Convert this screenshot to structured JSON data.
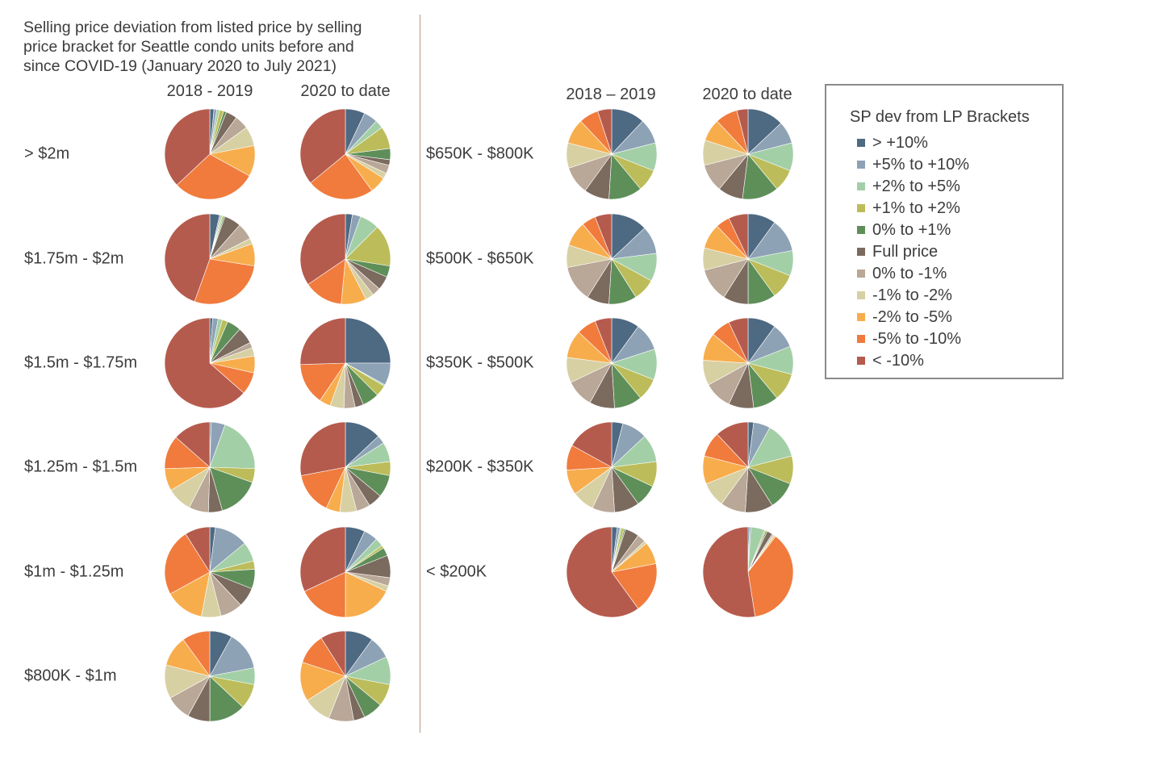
{
  "title_lines": [
    "Selling price deviation from listed price by selling",
    "price bracket for Seattle condo units before and",
    "since COVID-19 (January 2020 to July 2021)"
  ],
  "left_headers": [
    "2018 - 2019",
    "2020 to date"
  ],
  "right_headers": [
    "2018 – 2019",
    "2020 to date"
  ],
  "legend": {
    "title": "SP dev from LP Brackets",
    "items": [
      {
        "label": "> +10%",
        "color": "#4e6982"
      },
      {
        "label": "+5% to +10%",
        "color": "#8ea2b6"
      },
      {
        "label": "+2% to +5%",
        "color": "#a3cfa7"
      },
      {
        "label": "+1% to +2%",
        "color": "#bcbd5a"
      },
      {
        "label": "0% to +1%",
        "color": "#5e8f59"
      },
      {
        "label": "Full price",
        "color": "#7b6a5e"
      },
      {
        "label": "0% to -1%",
        "color": "#b9a797"
      },
      {
        "label": "-1% to -2%",
        "color": "#d7d0a3"
      },
      {
        "label": "-2% to -5%",
        "color": "#f8ad4d"
      },
      {
        "label": "-5% to -10%",
        "color": "#f07b3d"
      },
      {
        "label": "< -10%",
        "color": "#b55b4d"
      }
    ]
  },
  "chart_data": {
    "type": "pie",
    "unit": "share of sales (%)",
    "category_order": [
      "> +10%",
      "+5% to +10%",
      "+2% to +5%",
      "+1% to +2%",
      "0% to +1%",
      "Full price",
      "0% to -1%",
      "-1% to -2%",
      "-2% to -5%",
      "-5% to -10%",
      "< -10%"
    ],
    "brackets": [
      {
        "label": "> $2m",
        "2018-2019": [
          1.5,
          1.0,
          1.0,
          1.5,
          1.0,
          4.0,
          5.0,
          7.0,
          11.0,
          30.0,
          37.0
        ],
        "2020 to date": [
          7.0,
          5.0,
          3.0,
          8.0,
          4.0,
          2.0,
          3.0,
          2.0,
          6.0,
          24.0,
          36.0
        ]
      },
      {
        "label": "$1.75m - $2m",
        "2018-2019": [
          3.5,
          0.5,
          0.5,
          0.5,
          0.5,
          6.0,
          6.0,
          2.0,
          8.0,
          28.0,
          44.5
        ],
        "2020 to date": [
          2.5,
          3.0,
          7.0,
          15.0,
          4.0,
          5.0,
          3.0,
          3.0,
          9.0,
          14.0,
          34.5
        ]
      },
      {
        "label": "$1.5m - $1.75m",
        "2018-2019": [
          1.0,
          2.0,
          1.5,
          2.0,
          5.0,
          6.0,
          2.0,
          3.0,
          6.0,
          8.0,
          63.5
        ],
        "2020 to date": [
          25.0,
          8.0,
          0.5,
          4.0,
          6.0,
          3.0,
          4.0,
          5.0,
          4.0,
          15.0,
          25.5
        ]
      },
      {
        "label": "$1.25m - $1.5m",
        "2018-2019": [
          0.5,
          5.0,
          20.0,
          5.0,
          15.0,
          5.0,
          7.0,
          9.0,
          8.0,
          12.0,
          13.5
        ],
        "2020 to date": [
          13.0,
          3.0,
          7.0,
          5.0,
          8.0,
          5.0,
          5.0,
          6.0,
          5.0,
          15.0,
          28.0
        ]
      },
      {
        "label": "$1m - $1.25m",
        "2018-2019": [
          2.0,
          12.0,
          7.0,
          3.0,
          7.0,
          7.0,
          8.0,
          7.0,
          14.0,
          24.0,
          9.0
        ],
        "2020 to date": [
          7.0,
          5.0,
          3.0,
          1.0,
          3.0,
          8.0,
          3.0,
          2.0,
          18.0,
          18.0,
          32.0
        ]
      },
      {
        "label": "$800K - $1m",
        "2018-2019": [
          8.0,
          14.0,
          6.0,
          9.0,
          13.0,
          8.0,
          9.0,
          12.0,
          11.0,
          10.0,
          0.0
        ],
        "2020 to date": [
          10.0,
          8.0,
          10.0,
          8.0,
          7.0,
          4.0,
          9.0,
          10.0,
          14.0,
          11.0,
          9.0
        ]
      },
      {
        "label": "$650K - $800K",
        "2018-2019": [
          12.0,
          9.0,
          10.0,
          8.0,
          12.0,
          9.0,
          10.0,
          9.0,
          9.0,
          7.0,
          5.0
        ],
        "2020 to date": [
          13.0,
          8.0,
          10.0,
          8.0,
          13.0,
          9.0,
          10.0,
          9.0,
          8.0,
          8.0,
          4.0
        ]
      },
      {
        "label": "$500K - $650K",
        "2018-2019": [
          13.0,
          10.0,
          10.0,
          8.0,
          10.0,
          8.0,
          13.0,
          8.0,
          9.0,
          5.0,
          6.0
        ],
        "2020 to date": [
          10.0,
          12.0,
          9.0,
          9.0,
          10.0,
          9.0,
          12.0,
          8.0,
          9.0,
          5.0,
          7.0
        ]
      },
      {
        "label": "$350K - $500K",
        "2018-2019": [
          10.0,
          10.0,
          11.0,
          8.0,
          10.0,
          9.0,
          10.0,
          9.0,
          10.0,
          7.0,
          6.0
        ],
        "2020 to date": [
          10.0,
          9.0,
          10.0,
          10.0,
          9.0,
          9.0,
          10.0,
          9.0,
          10.0,
          7.0,
          7.0
        ]
      },
      {
        "label": "$200K - $350K",
        "2018-2019": [
          4.0,
          9.0,
          10.0,
          9.0,
          8.0,
          9.0,
          8.0,
          8.0,
          9.0,
          9.0,
          17.0
        ],
        "2020 to date": [
          2.0,
          6.0,
          13.0,
          10.0,
          10.0,
          10.0,
          9.0,
          9.0,
          10.0,
          9.0,
          12.0
        ]
      },
      {
        "label": "< $200K",
        "2018-2019": [
          2.0,
          1.0,
          0.5,
          1.0,
          0.5,
          5.0,
          3.0,
          1.0,
          8.0,
          18.0,
          60.0
        ],
        "2020 to date": [
          0.5,
          0.5,
          5.0,
          0.5,
          0.5,
          2.0,
          0.5,
          0.5,
          0.5,
          37.0,
          52.5
        ]
      }
    ]
  }
}
